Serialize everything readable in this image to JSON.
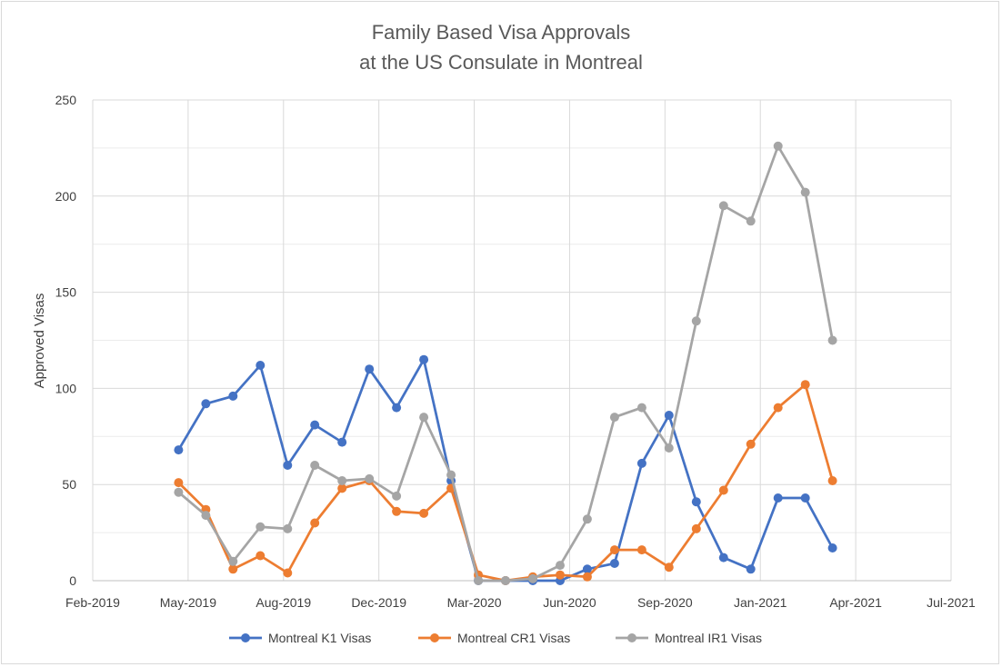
{
  "chart_data": {
    "type": "line",
    "title_lines": [
      "Family Based Visa Approvals",
      "at the US Consulate in Montreal"
    ],
    "ylabel": "Approved Visas",
    "xlabel": "",
    "ylim": [
      0,
      250
    ],
    "yticks": [
      0,
      50,
      100,
      150,
      200,
      250
    ],
    "x_tick_labels": [
      "Feb-2019",
      "May-2019",
      "Aug-2019",
      "Dec-2019",
      "Mar-2020",
      "Jun-2020",
      "Sep-2020",
      "Jan-2021",
      "Apr-2021",
      "Jul-2021"
    ],
    "grid": true,
    "legend_position": "bottom",
    "x": [
      "Apr-2019",
      "May-2019",
      "Jun-2019",
      "Jul-2019",
      "Aug-2019",
      "Sep-2019",
      "Oct-2019",
      "Nov-2019",
      "Dec-2019",
      "Jan-2020",
      "Feb-2020",
      "Mar-2020",
      "Apr-2020",
      "May-2020",
      "Jun-2020",
      "Jul-2020",
      "Aug-2020",
      "Sep-2020",
      "Oct-2020",
      "Nov-2020",
      "Dec-2020",
      "Jan-2021",
      "Feb-2021",
      "Mar-2021",
      "Apr-2021"
    ],
    "series": [
      {
        "name": "Montreal K1 Visas",
        "color": "#4472c4",
        "values": [
          68,
          92,
          96,
          112,
          60,
          81,
          72,
          110,
          90,
          115,
          52,
          0,
          0,
          0,
          0,
          6,
          9,
          61,
          86,
          41,
          12,
          6,
          43,
          43,
          17
        ]
      },
      {
        "name": "Montreal CR1 Visas",
        "color": "#ed7d31",
        "values": [
          51,
          37,
          6,
          13,
          4,
          30,
          48,
          52,
          36,
          35,
          48,
          3,
          0,
          2,
          3,
          2,
          16,
          16,
          7,
          27,
          47,
          71,
          90,
          102,
          52
        ]
      },
      {
        "name": "Montreal IR1 Visas",
        "color": "#a5a5a5",
        "values": [
          46,
          34,
          10,
          28,
          27,
          60,
          52,
          53,
          44,
          85,
          55,
          0,
          0,
          1,
          8,
          32,
          85,
          90,
          69,
          135,
          195,
          187,
          226,
          202,
          125
        ]
      }
    ]
  }
}
